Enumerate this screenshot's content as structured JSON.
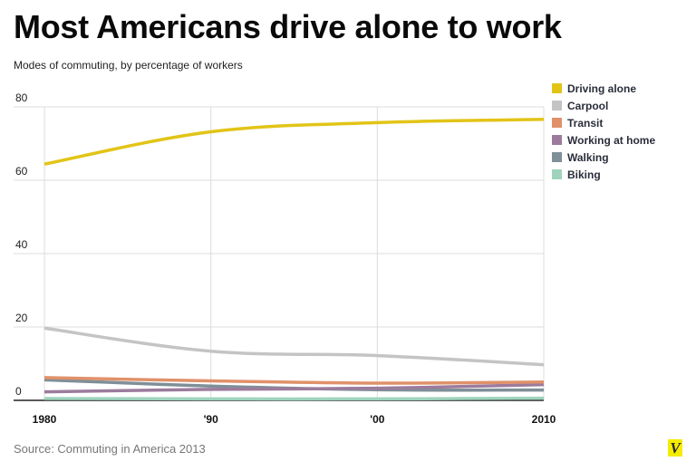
{
  "chart_data": {
    "type": "line",
    "title": "Most Americans drive alone to work",
    "subtitle": "Modes of commuting, by percentage of workers",
    "xlabel": "",
    "ylabel": "",
    "x": [
      1980,
      1990,
      2000,
      2010
    ],
    "x_tick_labels": [
      "1980",
      "'90",
      "'00",
      "2010"
    ],
    "y_ticks": [
      0,
      20,
      40,
      60,
      80
    ],
    "ylim": [
      0,
      80
    ],
    "grid": true,
    "legend_position": "top-right",
    "series": [
      {
        "name": "Driving alone",
        "color": "#e2c417",
        "values": [
          64.4,
          73.2,
          75.7,
          76.6
        ]
      },
      {
        "name": "Carpool",
        "color": "#c4c4c4",
        "values": [
          19.7,
          13.4,
          12.2,
          9.7
        ]
      },
      {
        "name": "Transit",
        "color": "#e0916a",
        "values": [
          6.2,
          5.3,
          4.7,
          5.0
        ]
      },
      {
        "name": "Working at home",
        "color": "#9c7b9c",
        "values": [
          2.3,
          3.0,
          3.3,
          4.3
        ]
      },
      {
        "name": "Walking",
        "color": "#7f8f98",
        "values": [
          5.6,
          3.9,
          2.9,
          2.8
        ]
      },
      {
        "name": "Biking",
        "color": "#9fd3bd",
        "values": [
          0.5,
          0.4,
          0.4,
          0.6
        ]
      }
    ],
    "source": "Source: Commuting in America 2013"
  },
  "header": {
    "title": "Most Americans drive alone to work",
    "subtitle": "Modes of commuting, by percentage of workers"
  },
  "footer": {
    "source": "Source: Commuting in America 2013",
    "logo_text": "V"
  }
}
